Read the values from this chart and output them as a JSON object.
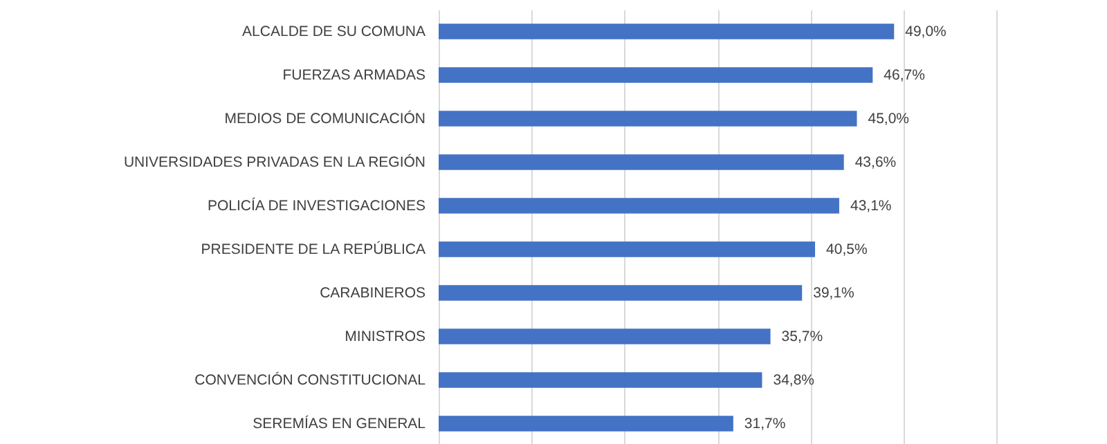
{
  "chart_data": {
    "type": "bar",
    "orientation": "horizontal",
    "categories": [
      "ALCALDE DE SU COMUNA",
      "FUERZAS ARMADAS",
      "MEDIOS DE COMUNICACIÓN",
      "UNIVERSIDADES PRIVADAS EN LA REGIÓN",
      "POLICÍA DE INVESTIGACIONES",
      "PRESIDENTE DE LA REPÚBLICA",
      "CARABINEROS",
      "MINISTROS",
      "CONVENCIÓN CONSTITUCIONAL",
      "SEREMÍAS EN GENERAL"
    ],
    "values": [
      49.0,
      46.7,
      45.0,
      43.6,
      43.1,
      40.5,
      39.1,
      35.7,
      34.8,
      31.7
    ],
    "value_labels": [
      "49,0%",
      "46,7%",
      "45,0%",
      "43,6%",
      "43,1%",
      "40,5%",
      "39,1%",
      "35,7%",
      "34,8%",
      "31,7%"
    ],
    "color": "#4472c4",
    "xlim": [
      0,
      60
    ],
    "xticks": [
      0,
      10,
      20,
      30,
      40,
      50,
      60
    ],
    "tick_labels": "y",
    "grid": "x"
  }
}
